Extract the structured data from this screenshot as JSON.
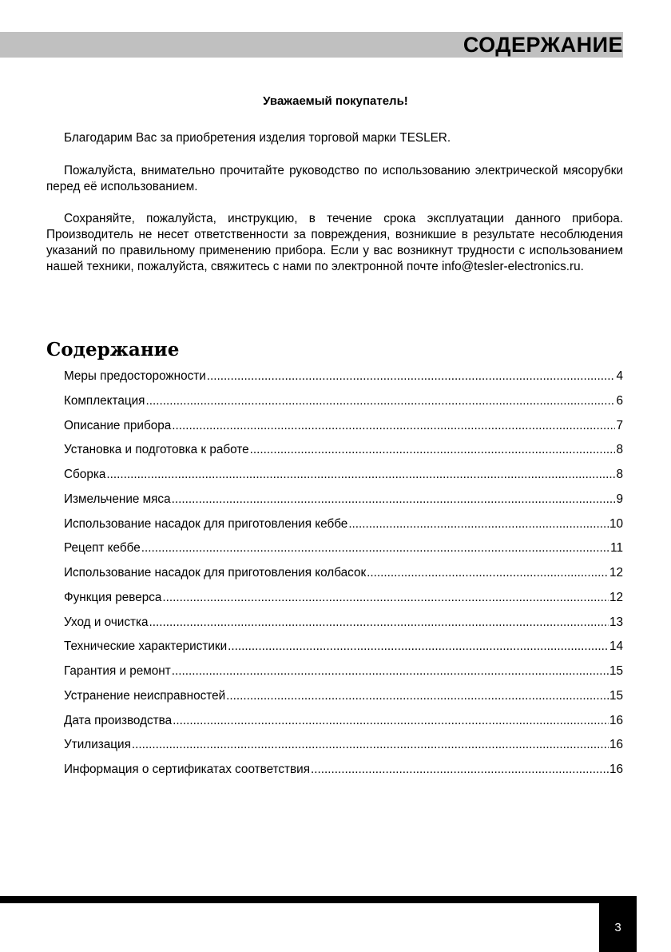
{
  "header": {
    "title": "СОДЕРЖАНИЕ"
  },
  "intro": {
    "greeting": "Уважаемый покупатель!",
    "paragraphs": [
      "Благодарим  Вас за приобретения изделия торговой марки TESLER.",
      "Пожалуйста,  внимательно  прочитайте  руководство  по  использованию электрической мясорубки  перед её использованием.",
      "Сохраняйте, пожалуйста, инструкцию, в течение срока эксплуатации данного прибора. Производитель не несет ответственности за повреждения, возникшие в результате несоблюдения указаний по правильному применению прибора. Если у вас возникнут трудности с использованием нашей техники, пожалуйста, свяжитесь с нами по электронной почте  info@tesler-electronics.ru."
    ]
  },
  "toc": {
    "title": "Содержание",
    "items": [
      {
        "label": "Меры предосторожности",
        "page": "4"
      },
      {
        "label": "Комплектация",
        "page": "6"
      },
      {
        "label": "Описание прибора",
        "page": "7"
      },
      {
        "label": "Установка и подготовка к работе",
        "page": "8"
      },
      {
        "label": "Сборка",
        "page": "8"
      },
      {
        "label": "Измельчение мяса",
        "page": "9"
      },
      {
        "label": "Использование насадок  для приготовления кеббе",
        "page": "10"
      },
      {
        "label": "Рецепт кеббе",
        "page": "11"
      },
      {
        "label": "Использование насадок  для приготовления колбасок",
        "page": "12"
      },
      {
        "label": "Функция реверса",
        "page": "12"
      },
      {
        "label": "Уход и очистка",
        "page": "13"
      },
      {
        "label": "Технические  характеристики",
        "page": "14"
      },
      {
        "label": "Гарантия и ремонт",
        "page": "15"
      },
      {
        "label": "Устранение  неисправностей",
        "page": "15"
      },
      {
        "label": "Дата производства",
        "page": "16"
      },
      {
        "label": "Утилизация",
        "page": "16"
      },
      {
        "label": "Информация о сертификатах  соответствия",
        "page": "16"
      }
    ]
  },
  "footer": {
    "page_number": "3"
  }
}
